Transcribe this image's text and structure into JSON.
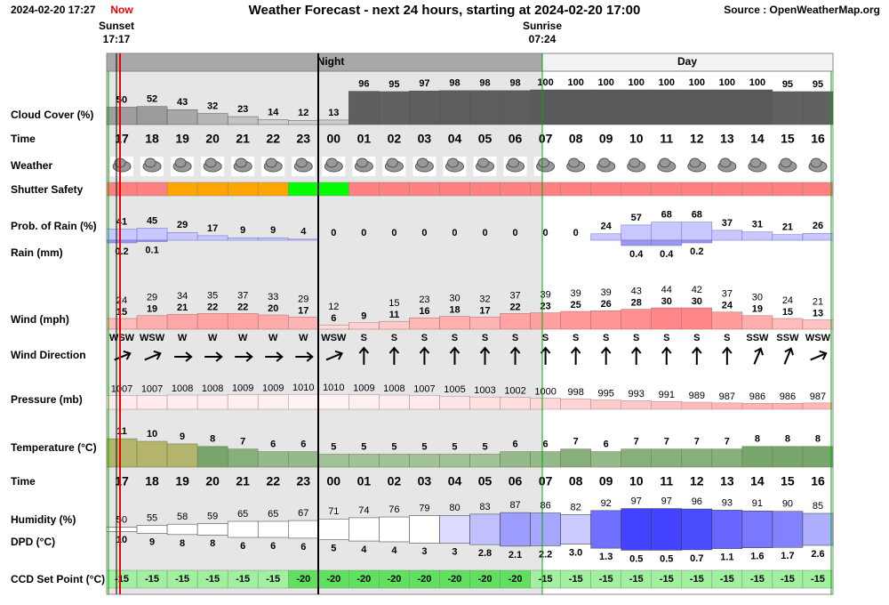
{
  "header": {
    "timestamp": "2024-02-20 17:27",
    "now": "Now",
    "title": "Weather Forecast - next 24 hours, starting at 2024-02-20 17:00",
    "source": "Source : OpenWeatherMap.org"
  },
  "sun": {
    "sunset_label": "Sunset",
    "sunset_time": "17:17",
    "sunrise_label": "Sunrise",
    "sunrise_time": "07:24"
  },
  "bands": {
    "night": "Night",
    "day": "Day"
  },
  "row_labels": {
    "cloud": "Cloud Cover (%)",
    "time": "Time",
    "weather": "Weather",
    "shutter": "Shutter Safety",
    "prob_rain": "Prob. of Rain (%)",
    "rain": "Rain (mm)",
    "wind": "Wind (mph)",
    "wind_dir": "Wind Direction",
    "pressure": "Pressure (mb)",
    "temperature": "Temperature (°C)",
    "time2": "Time",
    "humidity": "Humidity (%)",
    "dpd": "DPD (°C)",
    "ccd": "CCD Set Point (°C)"
  },
  "hours": [
    "17",
    "18",
    "19",
    "20",
    "21",
    "22",
    "23",
    "00",
    "01",
    "02",
    "03",
    "04",
    "05",
    "06",
    "07",
    "08",
    "09",
    "10",
    "11",
    "12",
    "13",
    "14",
    "15",
    "16"
  ],
  "cloud": [
    50,
    52,
    43,
    32,
    23,
    14,
    12,
    13,
    96,
    95,
    97,
    98,
    98,
    98,
    100,
    100,
    100,
    100,
    100,
    100,
    100,
    100,
    95,
    95
  ],
  "shutter_colors": [
    "#ff8080",
    "#ff8080",
    "#ffa500",
    "#ffa500",
    "#ffa500",
    "#ffa500",
    "#00ff00",
    "#00ff00",
    "#ff8080",
    "#ff8080",
    "#ff8080",
    "#ff8080",
    "#ff8080",
    "#ff8080",
    "#ff8080",
    "#ff8080",
    "#ff8080",
    "#ff8080",
    "#ff8080",
    "#ff8080",
    "#ff8080",
    "#ff8080",
    "#ff8080",
    "#ff8080"
  ],
  "prob_rain": [
    41,
    45,
    29,
    17,
    9,
    9,
    4,
    0,
    0,
    0,
    0,
    0,
    0,
    0,
    0,
    0,
    24,
    57,
    68,
    68,
    37,
    31,
    21,
    26
  ],
  "rain": [
    0.2,
    0.1,
    null,
    null,
    null,
    null,
    null,
    null,
    null,
    null,
    null,
    null,
    null,
    null,
    null,
    null,
    null,
    0.4,
    0.4,
    0.2,
    null,
    null,
    null,
    null
  ],
  "wind_gust": [
    24,
    29,
    34,
    35,
    37,
    33,
    29,
    12,
    null,
    15,
    23,
    30,
    32,
    37,
    39,
    39,
    39,
    43,
    44,
    42,
    37,
    30,
    24,
    21
  ],
  "wind_speed": [
    15,
    19,
    21,
    22,
    22,
    20,
    17,
    6,
    9,
    11,
    16,
    18,
    17,
    22,
    23,
    25,
    26,
    28,
    30,
    30,
    24,
    19,
    15,
    13
  ],
  "wind_dir": [
    "WSW",
    "WSW",
    "W",
    "W",
    "W",
    "W",
    "W",
    "WSW",
    "S",
    "S",
    "S",
    "S",
    "S",
    "S",
    "S",
    "S",
    "S",
    "S",
    "S",
    "S",
    "S",
    "SSW",
    "SSW",
    "WSW"
  ],
  "pressure": [
    1007,
    1007,
    1008,
    1008,
    1009,
    1009,
    1010,
    1010,
    1009,
    1008,
    1007,
    1005,
    1003,
    1002,
    1000,
    998,
    995,
    993,
    991,
    989,
    987,
    986,
    986,
    987
  ],
  "temperature": [
    11,
    10,
    9,
    8,
    7,
    6,
    6,
    5,
    5,
    5,
    5,
    5,
    5,
    6,
    6,
    7,
    6,
    7,
    7,
    7,
    7,
    8,
    8,
    8
  ],
  "humidity": [
    50,
    55,
    58,
    59,
    65,
    65,
    67,
    71,
    74,
    76,
    79,
    80,
    83,
    87,
    86,
    82,
    92,
    97,
    97,
    96,
    93,
    91,
    90,
    85
  ],
  "dpd": [
    10,
    9,
    8,
    8,
    6,
    6,
    6,
    5,
    4,
    4,
    3,
    3,
    2.8,
    2.1,
    2.2,
    {
      "value": 3,
      "label": "3.0"
    },
    1.3,
    0.5,
    0.5,
    0.7,
    1.1,
    1.6,
    1.7,
    2.6
  ],
  "ccd": [
    -15,
    -15,
    -15,
    -15,
    -15,
    -15,
    -20,
    -20,
    -20,
    -20,
    -20,
    -20,
    -20,
    -20,
    -15,
    -15,
    -15,
    -15,
    -15,
    -15,
    -15,
    -15,
    -15,
    -15
  ]
}
